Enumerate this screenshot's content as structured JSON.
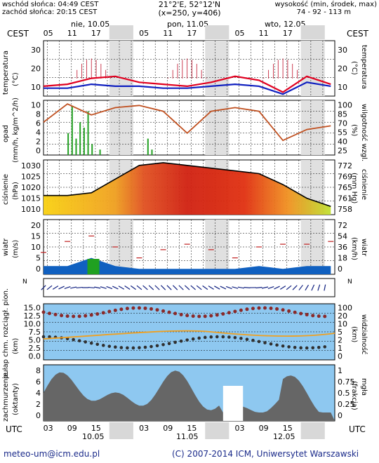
{
  "header": {
    "sunrise": "wschód słońca: 04:49 CEST",
    "sunset": "zachód słońca: 20:15 CEST",
    "coords": "21°2'E, 52°12'N",
    "grid": "(x=250, y=406)",
    "elevation_label": "wysokość (min, środek, max)",
    "elevation": "74 - 92 - 113 m"
  },
  "timezone_top": "CEST",
  "timezone_bottom": "UTC",
  "days_top": [
    "nie, 10.05",
    "pon, 11.05",
    "wto, 12.05"
  ],
  "days_bottom": [
    "10.05",
    "11.05",
    "12.05"
  ],
  "hours_top": [
    "05",
    "11",
    "17",
    "23",
    "05",
    "11",
    "17",
    "23",
    "05",
    "11",
    "17",
    "23"
  ],
  "hours_bottom": [
    "03",
    "09",
    "15",
    "21",
    "03",
    "09",
    "15",
    "21",
    "03",
    "09",
    "15",
    "21"
  ],
  "panels": {
    "temperature": {
      "left_label": "temperatura",
      "left_unit": "(°C)",
      "right_label": "temperatura",
      "right_unit": "(°C)",
      "ticks": [
        "30",
        "20",
        "10"
      ]
    },
    "precip": {
      "left_label": "opad",
      "left_unit": "(mm/h, kg/m^2/h)",
      "right_label": "wilgotność wzgl.",
      "right_unit": "(%)",
      "ticks_left": [
        "10",
        "8",
        "6",
        "4",
        "2",
        "0"
      ],
      "ticks_right": [
        "100",
        "85",
        "70",
        "55",
        "40",
        "25"
      ]
    },
    "pressure": {
      "left_label": "ciśnienie",
      "left_unit": "(hPa)",
      "right_label": "ciśnienie",
      "right_unit": "(mm Hg)",
      "ticks_left": [
        "1030",
        "1025",
        "1020",
        "1015",
        "1010"
      ],
      "ticks_right": [
        "772",
        "769",
        "765",
        "761",
        "758"
      ]
    },
    "wind": {
      "left_label": "wiatr",
      "left_unit": "(m/s)",
      "right_label": "wiatr",
      "right_unit": "(km/h)",
      "ticks_left": [
        "20",
        "15",
        "10",
        "5",
        "0"
      ],
      "ticks_right": [
        "72",
        "54",
        "36",
        "18",
        "0"
      ]
    },
    "direction": {
      "compass": "N",
      "compass_s": "S",
      "compass_e": "E",
      "compass_w": "W"
    },
    "visibility": {
      "left_label": "pułap chm. rozciągł. pion.",
      "left_unit": "(km)",
      "right_label": "widzialność",
      "right_unit": "(km)",
      "ticks_left": [
        "15.0",
        "12.5",
        "10.0",
        "7.5",
        "5.0",
        "2.5",
        "0.0"
      ],
      "ticks_right": [
        "100",
        "20",
        "10",
        "5",
        "2",
        "1",
        "0"
      ]
    },
    "clouds": {
      "left_label": "zachmurzenie",
      "left_unit": "(oktanty)",
      "right_label": "mgła",
      "right_unit": "(frakcja)",
      "ticks_left": [
        "8",
        "6",
        "4",
        "2",
        "0"
      ],
      "ticks_right": [
        "1",
        "0.75",
        "0.5",
        "0.25",
        "0"
      ]
    }
  },
  "footer": {
    "email": "meteo-um@icm.edu.pl",
    "copyright": "(C) 2007-2014 ICM, Uniwersytet Warszawski"
  },
  "colors": {
    "temperature": "#e00020",
    "dewpoint": "#1020c0",
    "humidity": "#c05020",
    "pressure_line": "#000000",
    "sky": "#8ec8f0",
    "cloud": "#666666"
  },
  "chart_data": [
    {
      "type": "line",
      "panel": "temperature",
      "ylim": [
        5,
        33
      ],
      "x_hours": [
        0,
        6,
        12,
        18,
        24,
        30,
        36,
        42,
        48,
        54,
        60,
        66,
        72
      ],
      "series": [
        {
          "values": [
            10,
            11,
            14,
            15,
            12,
            11,
            10,
            12,
            15,
            13,
            7,
            15,
            11
          ]
        },
        {
          "values": [
            9,
            9,
            11,
            10,
            10,
            9,
            9,
            10,
            11,
            10,
            6,
            12,
            10
          ]
        }
      ]
    },
    {
      "type": "line",
      "panel": "precip",
      "ylim": [
        25,
        100
      ],
      "x_hours": [
        0,
        6,
        12,
        18,
        24,
        30,
        36,
        42,
        48,
        54,
        60,
        66,
        72
      ],
      "series": [
        {
          "values": [
            70,
            95,
            80,
            90,
            93,
            85,
            55,
            85,
            90,
            85,
            45,
            60,
            65
          ]
        }
      ]
    },
    {
      "type": "area",
      "panel": "pressure",
      "ylim": [
        1010,
        1030
      ],
      "x_hours": [
        0,
        6,
        12,
        18,
        24,
        30,
        36,
        42,
        48,
        54,
        60,
        66,
        72
      ],
      "series": [
        {
          "values": [
            1017,
            1017,
            1018,
            1023,
            1028,
            1029,
            1028,
            1027,
            1026,
            1025,
            1021,
            1016,
            1013
          ]
        }
      ]
    },
    {
      "type": "line",
      "panel": "wind",
      "ylim": [
        0,
        20
      ],
      "x_hours": [
        0,
        6,
        12,
        18,
        24,
        30,
        36,
        42,
        48,
        54,
        60,
        66,
        72
      ],
      "series": [
        {
          "values": [
            3,
            3,
            6,
            3,
            2,
            2,
            2,
            2,
            2,
            3,
            2,
            3,
            3
          ]
        },
        {
          "values": [
            8,
            12,
            14,
            10,
            6,
            9,
            11,
            9,
            6,
            10,
            11,
            11,
            12
          ]
        }
      ]
    }
  ]
}
